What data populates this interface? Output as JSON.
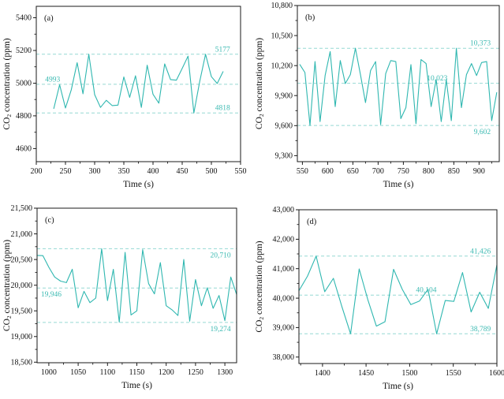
{
  "figure": {
    "xlabel": "Time (s)",
    "ylabel": "CO2 concentration (ppm)",
    "colors": {
      "line": "#2fb7b0",
      "dash": "#96d9d4",
      "annotation": "#3cbab2",
      "axis": "#1a1a1a",
      "text": "#111111"
    }
  },
  "chart_data": [
    {
      "type": "line",
      "tag": "(a)",
      "xlabel": "Time (s)",
      "ylabel": "CO2 concentration (ppm)",
      "xlim": [
        200,
        550
      ],
      "ylim": [
        4520,
        5470
      ],
      "xticks": [
        200,
        250,
        300,
        350,
        400,
        450,
        500,
        550
      ],
      "yticks": [
        4600,
        4800,
        5000,
        5200,
        5400
      ],
      "x_minor_step": 25,
      "y_minor_step": 100,
      "comma_y": false,
      "x_start": 230,
      "x_step": 10,
      "values": [
        4845,
        4990,
        4848,
        4960,
        5125,
        4935,
        5177,
        4930,
        4852,
        4895,
        4863,
        4866,
        5038,
        4913,
        5045,
        4852,
        5110,
        4932,
        4878,
        5118,
        5022,
        5018,
        5090,
        5165,
        4818,
        5010,
        5177,
        5040,
        4998,
        5070
      ],
      "ref_lines": [
        {
          "value": 5177,
          "label": "5177",
          "x": 532,
          "anchor": "end",
          "side": "above"
        },
        {
          "value": 4993,
          "label": "4993",
          "x": 228,
          "anchor": "middle",
          "side": "above"
        },
        {
          "value": 4818,
          "label": "4818",
          "x": 532,
          "anchor": "end",
          "side": "above"
        }
      ]
    },
    {
      "type": "line",
      "tag": "(b)",
      "xlabel": "Time (s)",
      "ylabel": "CO2 concentration (ppm)",
      "xlim": [
        540,
        940
      ],
      "ylim": [
        9240,
        10800
      ],
      "xticks": [
        550,
        600,
        650,
        700,
        750,
        800,
        850,
        900
      ],
      "yticks": [
        9300,
        9600,
        9900,
        10200,
        10500,
        10800
      ],
      "x_minor_step": 25,
      "y_minor_step": 150,
      "comma_y": true,
      "x_start": 545,
      "x_step": 10,
      "values": [
        10210,
        10130,
        9602,
        10240,
        9640,
        10100,
        10340,
        9790,
        10250,
        10020,
        10110,
        10373,
        10110,
        9830,
        10150,
        10240,
        9610,
        10120,
        10250,
        10240,
        9670,
        9780,
        10210,
        9620,
        10260,
        10220,
        9790,
        10060,
        9640,
        10060,
        9650,
        10373,
        9780,
        10110,
        10220,
        10100,
        10230,
        10240,
        9650,
        9930
      ],
      "ref_lines": [
        {
          "value": 10373,
          "label": "10,373",
          "x": 923,
          "anchor": "end",
          "side": "above"
        },
        {
          "value": 10023,
          "label": "10,023",
          "x": 817,
          "anchor": "middle",
          "side": "above"
        },
        {
          "value": 9602,
          "label": "9,602",
          "x": 923,
          "anchor": "end",
          "side": "below"
        }
      ]
    },
    {
      "type": "line",
      "tag": "(c)",
      "xlabel": "Time (s)",
      "ylabel": "CO2 concentration (ppm)",
      "xlim": [
        980,
        1320
      ],
      "ylim": [
        18490,
        21500
      ],
      "xticks": [
        1000,
        1050,
        1100,
        1150,
        1200,
        1250,
        1300
      ],
      "yticks": [
        18500,
        19000,
        19500,
        20000,
        20500,
        21000,
        21500
      ],
      "x_minor_step": 25,
      "y_minor_step": 250,
      "comma_y": true,
      "x_start": 980,
      "x_step": 10,
      "values": [
        20580,
        20575,
        20350,
        20160,
        20080,
        20050,
        20310,
        19560,
        19880,
        19660,
        19750,
        20710,
        19700,
        20310,
        19280,
        20640,
        19420,
        19500,
        20690,
        20030,
        19830,
        20440,
        19600,
        19520,
        19410,
        20500,
        19300,
        20110,
        19600,
        19950,
        19550,
        19800,
        19310,
        20160,
        19820
      ],
      "ref_lines": [
        {
          "value": 20710,
          "label": "20,710",
          "x": 1310,
          "anchor": "end",
          "side": "below"
        },
        {
          "value": 19946,
          "label": "19,946",
          "x": 1004,
          "anchor": "middle",
          "side": "below"
        },
        {
          "value": 19274,
          "label": "19,274",
          "x": 1310,
          "anchor": "end",
          "side": "below"
        }
      ]
    },
    {
      "type": "line",
      "tag": "(d)",
      "xlabel": "Time (s)",
      "ylabel": "CO2 concentration (ppm)",
      "xlim": [
        1373,
        1600
      ],
      "ylim": [
        37780,
        43000
      ],
      "xticks": [
        1400,
        1450,
        1500,
        1550,
        1600
      ],
      "yticks": [
        38000,
        39000,
        40000,
        41000,
        42000,
        43000
      ],
      "x_minor_step": 25,
      "y_minor_step": 500,
      "comma_y": true,
      "x_start": 1373,
      "x_step": 9.87,
      "values": [
        40250,
        40750,
        41426,
        40220,
        40670,
        39700,
        38789,
        40990,
        39950,
        39050,
        39200,
        40980,
        40300,
        39780,
        39900,
        40300,
        38789,
        39920,
        39890,
        40870,
        39530,
        40200,
        39650,
        41130
      ],
      "ref_lines": [
        {
          "value": 41426,
          "label": "41,426",
          "x": 1593,
          "anchor": "end",
          "side": "above"
        },
        {
          "value": 40104,
          "label": "40,104",
          "x": 1519,
          "anchor": "middle",
          "side": "above"
        },
        {
          "value": 38789,
          "label": "38,789",
          "x": 1593,
          "anchor": "end",
          "side": "above"
        }
      ]
    }
  ]
}
